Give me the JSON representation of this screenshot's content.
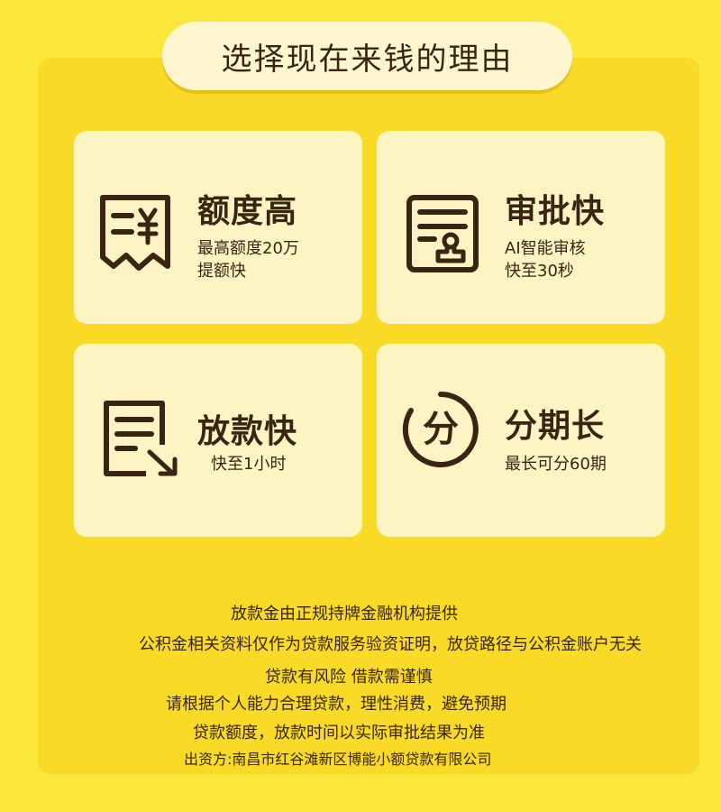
{
  "header": {
    "title": "选择现在来钱的理由"
  },
  "cards": [
    {
      "icon": "receipt-yuan-icon",
      "title": "额度高",
      "desc": [
        "最高额度20万",
        "提额快"
      ]
    },
    {
      "icon": "approval-stamp-icon",
      "title": "审批快",
      "desc": [
        "AI智能审核",
        "快至30秒"
      ]
    },
    {
      "icon": "document-send-icon",
      "title": "放款快",
      "desc": [
        "快至1小时"
      ]
    },
    {
      "icon": "installment-fen-icon",
      "icon_glyph": "分",
      "title": "分期长",
      "desc": [
        "最长可分60期"
      ]
    }
  ],
  "footer": {
    "lines": [
      "放款金由正规持牌金融机构提供",
      "公积金相关资料仅作为贷款服务验资证明，放贷路径与公积金账户无关",
      "贷款有风险 借款需谨慎",
      "请根据个人能力合理贷款，理性消费，避免预期",
      "贷款额度，放款时间以实际审批结果为准",
      "出资方:南昌市红谷滩新区博能小额贷款有限公司"
    ]
  },
  "colors": {
    "background": "#fbe73c",
    "panel": "#f8da27",
    "card": "#fdf4c4",
    "text": "#3a2412"
  }
}
